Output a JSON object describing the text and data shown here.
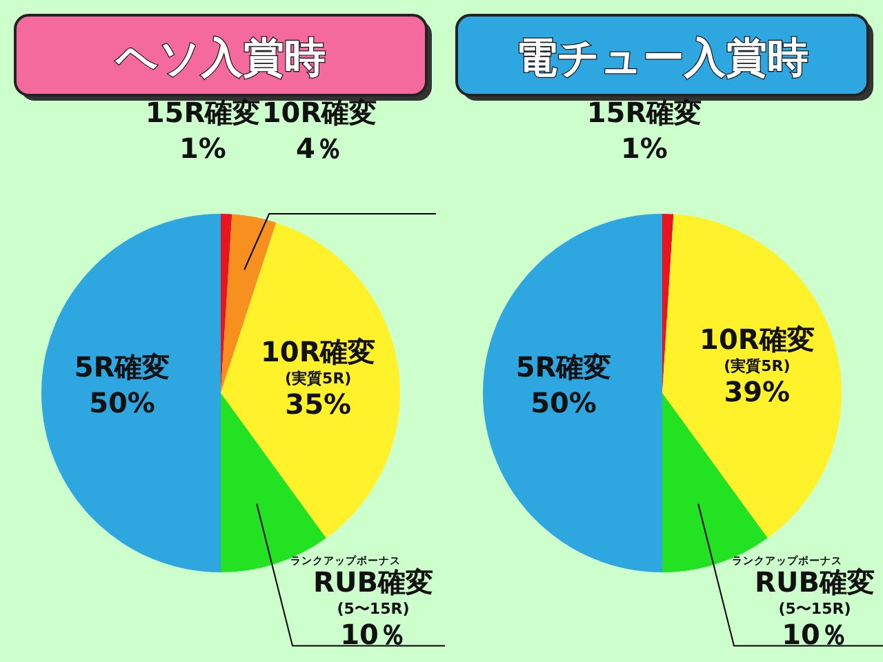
{
  "chart_data": [
    {
      "type": "pie",
      "title": "ヘソ入賞時",
      "categories": [
        "15R確変",
        "10R確変",
        "10R確変\n(実質5R)",
        "ランクアップボーナス\nRUB確変\n(5〜15R)",
        "5R確変"
      ],
      "values": [
        1,
        4,
        35,
        10,
        50
      ],
      "colors": [
        "#e8141e",
        "#f7901e",
        "#fff22a",
        "#22e222",
        "#2ea7e0"
      ],
      "value_labels": [
        "1%",
        "4％",
        "35%",
        "10％",
        "50%"
      ]
    },
    {
      "type": "pie",
      "title": "電チュー入賞時",
      "categories": [
        "15R確変",
        "10R確変\n(実質5R)",
        "ランクアップボーナス\nRUB確変\n(5〜15R)",
        "5R確変"
      ],
      "values": [
        1,
        39,
        10,
        50
      ],
      "colors": [
        "#e8141e",
        "#fff22a",
        "#22e222",
        "#2ea7e0"
      ],
      "value_labels": [
        "1%",
        "39%",
        "10％",
        "50%"
      ]
    }
  ]
}
